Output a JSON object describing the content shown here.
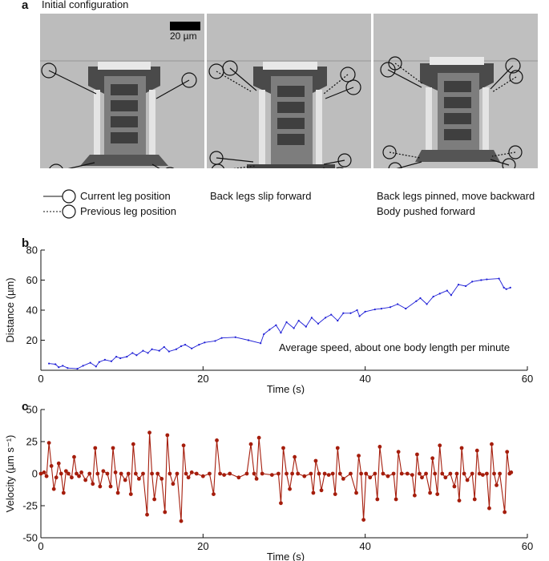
{
  "panel_a": {
    "letter": "a",
    "title": "Initial configuration",
    "scale_bar_label": "20 µm",
    "legend": {
      "current": "Current leg position",
      "previous": "Previous leg position"
    },
    "captions": {
      "frame2": "Back legs slip forward",
      "frame3_line1": "Back legs pinned, move backward",
      "frame3_line2": "Body pushed forward"
    }
  },
  "chart_data": [
    {
      "id": "b",
      "panel_letter": "b",
      "type": "line",
      "xlabel": "Time (s)",
      "ylabel": "Distance (µm)",
      "xlim": [
        0,
        60
      ],
      "ylim": [
        0,
        80
      ],
      "xticks": [
        0,
        20,
        40,
        60
      ],
      "yticks": [
        20,
        40,
        60,
        80
      ],
      "annotation": "Average speed, about one body length per minute",
      "color": "#1f1fd6",
      "series": [
        {
          "x": [
            1.0,
            1.8,
            2.2,
            2.7,
            3.3,
            4.5,
            5.2,
            6.1,
            6.8,
            7.2,
            7.9,
            8.7,
            9.3,
            9.8,
            10.6,
            11.3,
            11.8,
            12.6,
            13.2,
            13.7,
            14.6,
            15.2,
            15.8,
            16.7,
            17.3,
            17.8,
            18.6,
            19.5,
            20.2,
            21.5,
            22.3,
            24.0,
            25.6,
            27.1,
            27.5,
            28.2,
            29.0,
            29.6,
            30.3,
            31.2,
            31.8,
            32.7,
            33.4,
            34.2,
            35.1,
            35.8,
            36.6,
            37.3,
            38.2,
            39.0,
            39.3,
            40.0,
            41.2,
            42.0,
            43.1,
            44.0,
            45.0,
            46.3,
            46.8,
            47.6,
            48.4,
            49.2,
            50.1,
            50.6,
            51.5,
            52.4,
            53.2,
            54.3,
            55.0,
            56.5,
            57.1,
            57.4,
            57.9
          ],
          "y": [
            4.5,
            4.0,
            2.0,
            3.0,
            1.5,
            1.0,
            3.0,
            5.0,
            2.5,
            5.5,
            7.0,
            6.0,
            9.0,
            8.0,
            9.0,
            11.5,
            10.0,
            13.0,
            11.5,
            14.0,
            13.0,
            15.5,
            12.5,
            14.0,
            16.0,
            17.0,
            14.5,
            17.0,
            18.5,
            19.5,
            21.5,
            22.0,
            20.0,
            18.0,
            24.0,
            27.0,
            30.0,
            25.0,
            32.0,
            28.0,
            33.0,
            29.0,
            35.0,
            31.0,
            35.0,
            37.0,
            33.0,
            38.0,
            38.0,
            40.0,
            36.0,
            39.0,
            40.5,
            41.0,
            42.0,
            44.0,
            41.0,
            46.0,
            48.0,
            44.0,
            49.0,
            51.0,
            53.0,
            50.0,
            57.0,
            56.0,
            59.0,
            60.0,
            60.5,
            61.0,
            55.0,
            54.0,
            55.0
          ]
        }
      ]
    },
    {
      "id": "c",
      "panel_letter": "c",
      "type": "line",
      "xlabel": "Time (s)",
      "ylabel": "Velocity (µm s⁻¹)",
      "xlim": [
        0,
        60
      ],
      "ylim": [
        -50,
        50
      ],
      "xticks": [
        0,
        20,
        40,
        60
      ],
      "yticks": [
        -50,
        -25,
        0,
        25,
        50
      ],
      "color": "#a51d0c",
      "series": [
        {
          "x": [
            0.0,
            0.4,
            0.7,
            1.0,
            1.3,
            1.6,
            1.9,
            2.2,
            2.5,
            2.8,
            3.1,
            3.4,
            3.8,
            4.1,
            4.4,
            4.7,
            5.0,
            5.5,
            6.0,
            6.4,
            6.7,
            7.0,
            7.3,
            7.7,
            8.2,
            8.6,
            8.9,
            9.2,
            9.5,
            9.9,
            10.4,
            10.8,
            11.1,
            11.4,
            11.7,
            12.1,
            12.6,
            13.1,
            13.4,
            13.7,
            14.0,
            14.4,
            14.9,
            15.3,
            15.6,
            15.9,
            16.3,
            16.8,
            17.3,
            17.6,
            17.9,
            18.2,
            18.6,
            19.2,
            20.0,
            20.8,
            21.3,
            21.7,
            22.1,
            22.6,
            23.3,
            24.4,
            25.4,
            25.9,
            26.3,
            26.6,
            26.9,
            27.3,
            28.5,
            29.3,
            29.6,
            29.9,
            30.3,
            30.7,
            31.0,
            31.3,
            31.7,
            32.5,
            33.3,
            33.6,
            33.9,
            34.3,
            34.6,
            35.0,
            35.5,
            36.0,
            36.3,
            36.6,
            36.9,
            37.3,
            38.2,
            38.9,
            39.2,
            39.5,
            39.8,
            40.1,
            40.6,
            41.2,
            41.5,
            41.8,
            42.2,
            42.8,
            43.5,
            43.8,
            44.1,
            44.5,
            45.2,
            45.8,
            46.1,
            46.4,
            46.7,
            47.0,
            47.5,
            48.0,
            48.3,
            48.6,
            48.9,
            49.2,
            49.5,
            49.9,
            50.5,
            51.0,
            51.3,
            51.6,
            51.9,
            52.2,
            52.6,
            53.2,
            53.5,
            53.8,
            54.1,
            54.5,
            55.0,
            55.3,
            55.6,
            55.9,
            56.2,
            56.6,
            57.2,
            57.5,
            57.8,
            58.0
          ],
          "y": [
            0,
            1,
            -2,
            24,
            6,
            -12,
            -3,
            8,
            0,
            -15,
            2,
            0,
            -3,
            13,
            0,
            -2,
            1,
            -5,
            0,
            -8,
            20,
            0,
            -10,
            2,
            0,
            -10,
            20,
            1,
            -15,
            0,
            -5,
            0,
            -16,
            23,
            0,
            -4,
            0,
            -32,
            32,
            0,
            -20,
            0,
            -4,
            -30,
            30,
            0,
            -8,
            0,
            -37,
            22,
            0,
            -3,
            1,
            0,
            -2,
            0,
            -16,
            26,
            0,
            -1,
            0,
            -3,
            0,
            23,
            0,
            -4,
            28,
            0,
            -1,
            0,
            -23,
            20,
            0,
            -12,
            0,
            13,
            0,
            -2,
            0,
            -15,
            10,
            0,
            -13,
            0,
            -1,
            0,
            -16,
            20,
            0,
            -4,
            0,
            -15,
            14,
            0,
            -36,
            0,
            -3,
            0,
            -20,
            21,
            0,
            -2,
            0,
            -20,
            17,
            0,
            0,
            -1,
            -17,
            15,
            0,
            -3,
            0,
            -15,
            12,
            0,
            -16,
            22,
            0,
            -3,
            0,
            -10,
            0,
            -21,
            20,
            0,
            -5,
            0,
            -20,
            18,
            0,
            -1,
            0,
            -27,
            23,
            0,
            -9,
            0,
            -30,
            17,
            0,
            1
          ]
        }
      ]
    }
  ]
}
